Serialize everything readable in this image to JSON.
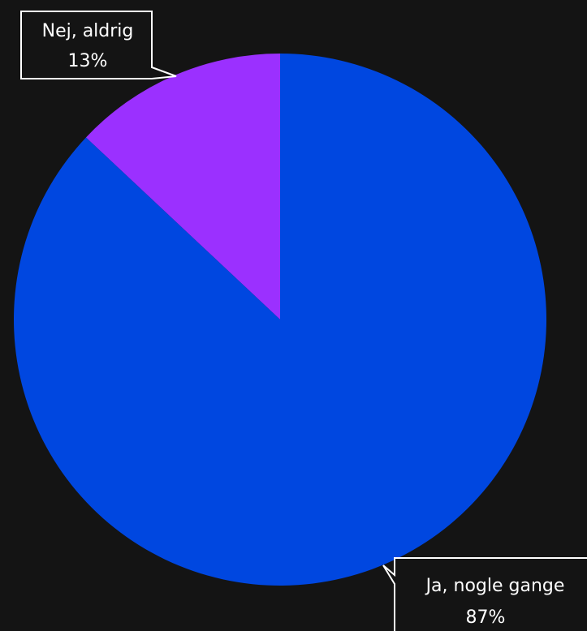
{
  "chart_data": {
    "type": "pie",
    "title": "",
    "start": "top",
    "direction": "counterclockwise",
    "slices": [
      {
        "label": "Nej, aldrig",
        "value": 13,
        "value_label": "13%",
        "color": "#9b30ff"
      },
      {
        "label": "Ja, nogle gange",
        "value": 87,
        "value_label": "87%",
        "color": "#0047e0"
      }
    ],
    "background": "#141414",
    "callout_border_color": "#ffffff"
  }
}
